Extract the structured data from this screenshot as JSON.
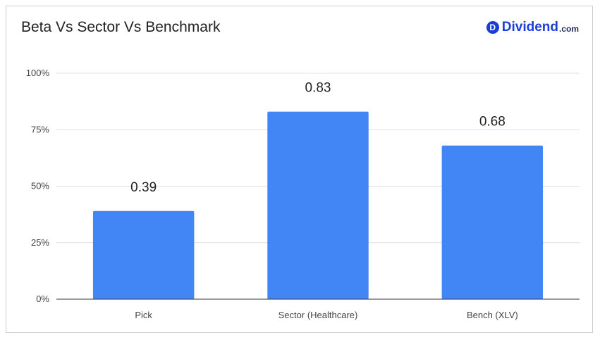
{
  "header": {
    "title": "Beta Vs Sector Vs Benchmark",
    "brand": {
      "badge": "D",
      "name": "Dividend",
      "tld": ".com",
      "color": "#1a3fd6"
    }
  },
  "chart_data": {
    "type": "bar",
    "title": "Beta Vs Sector Vs Benchmark",
    "categories": [
      "Pick",
      "Sector (Healthcare)",
      "Bench (XLV)"
    ],
    "values": [
      0.39,
      0.83,
      0.68
    ],
    "data_labels": [
      "0.39",
      "0.83",
      "0.68"
    ],
    "ylim": [
      0,
      1
    ],
    "yticks": [
      0,
      0.25,
      0.5,
      0.75,
      1
    ],
    "ytick_labels": [
      "0%",
      "25%",
      "50%",
      "75%",
      "100%"
    ],
    "grid": true,
    "bar_color": "#4285f4"
  }
}
